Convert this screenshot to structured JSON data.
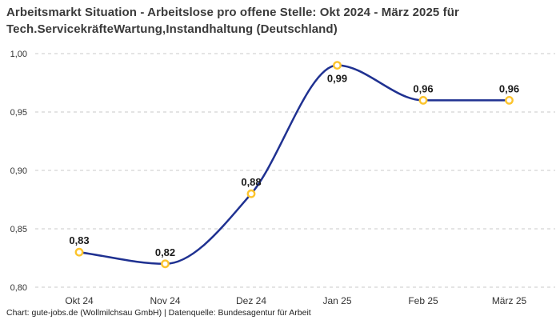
{
  "title_lines": [
    "Arbeitsmarkt Situation - Arbeitslose pro offene Stelle: Okt 2024 - März 2025 für",
    "Tech.ServicekräfteWartung,Instandhaltung (Deutschland)"
  ],
  "footer": "Chart: gute-jobs.de (Wollmilchsau GmbH) | Datenquelle: Bundesagentur für Arbeit",
  "chart_data": {
    "type": "line",
    "title": "Arbeitsmarkt Situation - Arbeitslose pro offene Stelle: Okt 2024 - März 2025 für Tech.ServicekräfteWartung,Instandhaltung (Deutschland)",
    "categories": [
      "Okt 24",
      "Nov 24",
      "Dez 24",
      "Jan 25",
      "Feb 25",
      "März 25"
    ],
    "values": [
      0.83,
      0.82,
      0.88,
      0.99,
      0.96,
      0.96
    ],
    "value_labels": [
      "0,83",
      "0,82",
      "0,88",
      "0,99",
      "0,96",
      "0,96"
    ],
    "label_positions": [
      "above",
      "above",
      "above",
      "below",
      "above",
      "above"
    ],
    "xlabel": "",
    "ylabel": "",
    "ylim": [
      0.8,
      1.0
    ],
    "yticks": [
      1.0,
      0.95,
      0.9,
      0.85,
      0.8
    ],
    "ytick_labels": [
      "1,00",
      "0,95",
      "0,90",
      "0,85",
      "0,80"
    ],
    "grid": "horizontal-dashed",
    "legend": "none",
    "curve": "smooth-monotone",
    "colors": {
      "line": "#1f3191",
      "marker_stroke": "#fcc42d",
      "marker_fill": "#ffffff",
      "grid": "#c9c9c9",
      "value_label": "#1a1a1a",
      "tick_label": "#333333",
      "title": "#3a3a3a",
      "background": "#ffffff"
    }
  }
}
